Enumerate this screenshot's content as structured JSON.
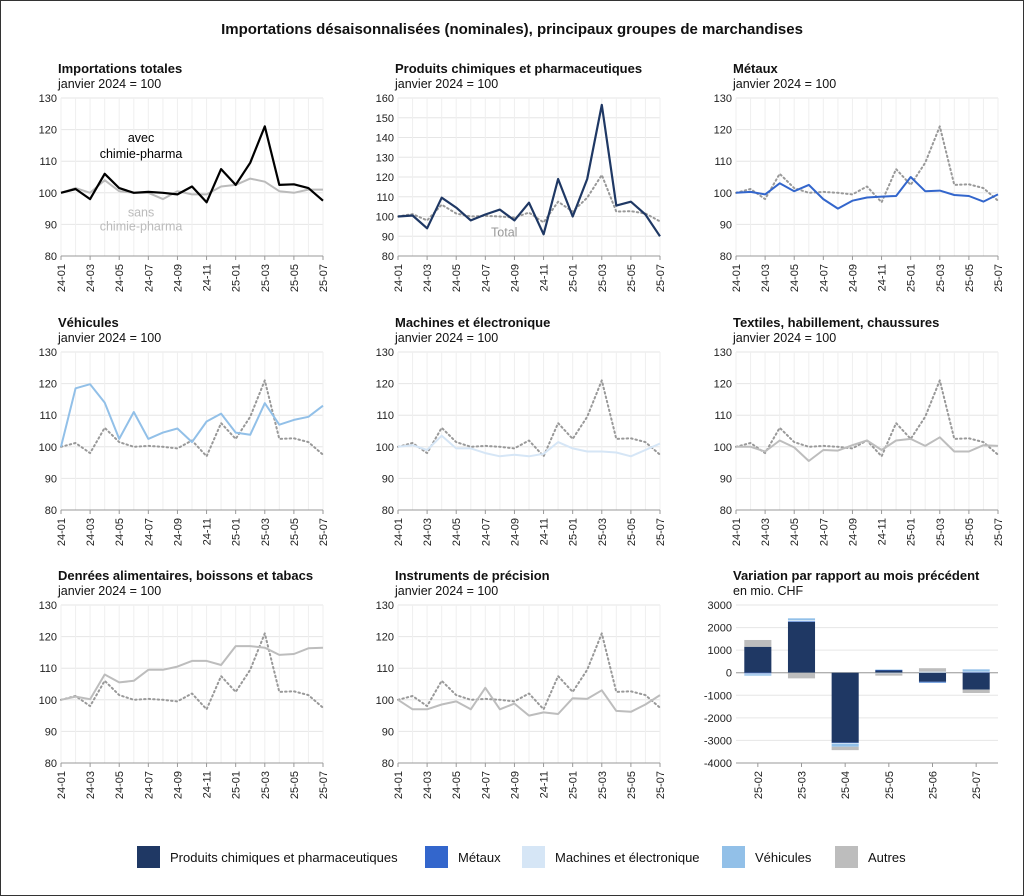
{
  "figure": {
    "title": "Importations désaisonnalisées (nominales), principaux groupes de marchandises"
  },
  "colors": {
    "chem": "#1f3864",
    "metals": "#3366cc",
    "machines": "#d6e6f6",
    "vehicles": "#92c0e8",
    "others": "#bdbdbd",
    "total": "#999999",
    "black": "#000000",
    "grey": "#bbbbbb"
  },
  "chart_data": [
    {
      "type": "line",
      "title": "Importations totales",
      "subtitle": "janvier 2024 = 100",
      "categories": [
        "24-01",
        "24-02",
        "24-03",
        "24-04",
        "24-05",
        "24-06",
        "24-07",
        "24-08",
        "24-09",
        "24-10",
        "24-11",
        "24-12",
        "25-01",
        "25-02",
        "25-03",
        "25-04",
        "25-05",
        "25-06",
        "25-07"
      ],
      "tick_labels": [
        "24-01",
        "24-03",
        "24-05",
        "24-07",
        "24-09",
        "24-11",
        "25-01",
        "25-03",
        "25-05",
        "25-07"
      ],
      "ylim": [
        80,
        130
      ],
      "yticks": [
        80,
        90,
        100,
        110,
        120,
        130
      ],
      "series": [
        {
          "name": "sans chimie-pharma",
          "color": "grey",
          "style": "solid",
          "values": [
            100,
            101.5,
            100,
            104,
            100.5,
            100,
            100,
            98,
            100.5,
            99.5,
            99.5,
            102,
            102.5,
            104.5,
            103.5,
            100.5,
            100,
            101,
            101
          ]
        },
        {
          "name": "avec chimie-pharma",
          "color": "black",
          "style": "solid",
          "values": [
            100,
            101.2,
            98,
            106,
            101.5,
            100,
            100.3,
            100,
            99.5,
            102,
            97,
            107.5,
            102.5,
            109.5,
            121,
            102.5,
            102.7,
            101.5,
            97.5
          ]
        }
      ],
      "annotations": [
        {
          "lines": [
            "avec",
            "chimie-pharma"
          ],
          "color": "black",
          "xi": 5.5,
          "y": [
            116,
            111
          ]
        },
        {
          "lines": [
            "sans",
            "chimie-pharma"
          ],
          "color": "grey",
          "xi": 5.5,
          "y": [
            92.5,
            88
          ]
        }
      ]
    },
    {
      "type": "line",
      "title": "Produits chimiques et pharmaceutiques",
      "subtitle": "janvier 2024 = 100",
      "categories": [
        "24-01",
        "24-02",
        "24-03",
        "24-04",
        "24-05",
        "24-06",
        "24-07",
        "24-08",
        "24-09",
        "24-10",
        "24-11",
        "24-12",
        "25-01",
        "25-02",
        "25-03",
        "25-04",
        "25-05",
        "25-06",
        "25-07"
      ],
      "tick_labels": [
        "24-01",
        "24-03",
        "24-05",
        "24-07",
        "24-09",
        "24-11",
        "25-01",
        "25-03",
        "25-05",
        "25-07"
      ],
      "ylim": [
        80,
        160
      ],
      "yticks": [
        80,
        90,
        100,
        110,
        120,
        130,
        140,
        150,
        160
      ],
      "series": [
        {
          "name": "Total",
          "color": "total",
          "style": "dotted",
          "values": [
            100,
            101.2,
            98,
            106,
            101.5,
            100,
            100.3,
            100,
            99.5,
            102,
            97,
            107.5,
            102.5,
            109.5,
            121,
            102.5,
            102.7,
            101.5,
            97.5
          ]
        },
        {
          "name": "Produits chimiques et pharmaceutiques",
          "color": "chem",
          "style": "solid",
          "values": [
            100,
            100.5,
            94,
            109.5,
            104.5,
            98,
            101,
            103.5,
            98,
            107,
            91,
            119,
            100,
            119,
            156.5,
            105.5,
            107.5,
            101,
            90
          ]
        }
      ],
      "annotations": [
        {
          "lines": [
            "Total"
          ],
          "color": "total",
          "xi": 7.3,
          "y": [
            90
          ]
        }
      ]
    },
    {
      "type": "line",
      "title": "Métaux",
      "subtitle": "janvier 2024 = 100",
      "categories": [
        "24-01",
        "24-02",
        "24-03",
        "24-04",
        "24-05",
        "24-06",
        "24-07",
        "24-08",
        "24-09",
        "24-10",
        "24-11",
        "24-12",
        "25-01",
        "25-02",
        "25-03",
        "25-04",
        "25-05",
        "25-06",
        "25-07"
      ],
      "tick_labels": [
        "24-01",
        "24-03",
        "24-05",
        "24-07",
        "24-09",
        "24-11",
        "25-01",
        "25-03",
        "25-05",
        "25-07"
      ],
      "ylim": [
        80,
        130
      ],
      "yticks": [
        80,
        90,
        100,
        110,
        120,
        130
      ],
      "series": [
        {
          "name": "Total",
          "color": "total",
          "style": "dotted",
          "values": [
            100,
            101.2,
            98,
            106,
            101.5,
            100,
            100.3,
            100,
            99.5,
            102,
            97,
            107.5,
            102.5,
            109.5,
            121,
            102.5,
            102.7,
            101.5,
            97.5
          ]
        },
        {
          "name": "Métaux",
          "color": "metals",
          "style": "solid",
          "values": [
            100,
            100.3,
            99.5,
            103,
            100.5,
            102.5,
            98,
            95,
            97.5,
            98.5,
            98.8,
            99,
            105,
            100.5,
            100.7,
            99.3,
            99,
            97.2,
            99.5
          ]
        }
      ]
    },
    {
      "type": "line",
      "title": "Véhicules",
      "subtitle": "janvier 2024 = 100",
      "categories": [
        "24-01",
        "24-02",
        "24-03",
        "24-04",
        "24-05",
        "24-06",
        "24-07",
        "24-08",
        "24-09",
        "24-10",
        "24-11",
        "24-12",
        "25-01",
        "25-02",
        "25-03",
        "25-04",
        "25-05",
        "25-06",
        "25-07"
      ],
      "tick_labels": [
        "24-01",
        "24-03",
        "24-05",
        "24-07",
        "24-09",
        "24-11",
        "25-01",
        "25-03",
        "25-05",
        "25-07"
      ],
      "ylim": [
        80,
        130
      ],
      "yticks": [
        80,
        90,
        100,
        110,
        120,
        130
      ],
      "series": [
        {
          "name": "Total",
          "color": "total",
          "style": "dotted",
          "values": [
            100,
            101.2,
            98,
            106,
            101.5,
            100,
            100.3,
            100,
            99.5,
            102,
            97,
            107.5,
            102.5,
            109.5,
            121,
            102.5,
            102.7,
            101.5,
            97.5
          ]
        },
        {
          "name": "Véhicules",
          "color": "vehicles",
          "style": "solid",
          "values": [
            100,
            118.5,
            119.8,
            114,
            102.5,
            111,
            102.5,
            104.5,
            105.8,
            101.5,
            108,
            110.5,
            104.5,
            103.8,
            113.8,
            107,
            108.5,
            109.5,
            113
          ]
        }
      ]
    },
    {
      "type": "line",
      "title": "Machines et électronique",
      "subtitle": "janvier 2024 = 100",
      "categories": [
        "24-01",
        "24-02",
        "24-03",
        "24-04",
        "24-05",
        "24-06",
        "24-07",
        "24-08",
        "24-09",
        "24-10",
        "24-11",
        "24-12",
        "25-01",
        "25-02",
        "25-03",
        "25-04",
        "25-05",
        "25-06",
        "25-07"
      ],
      "tick_labels": [
        "24-01",
        "24-03",
        "24-05",
        "24-07",
        "24-09",
        "24-11",
        "25-01",
        "25-03",
        "25-05",
        "25-07"
      ],
      "ylim": [
        80,
        130
      ],
      "yticks": [
        80,
        90,
        100,
        110,
        120,
        130
      ],
      "series": [
        {
          "name": "Total",
          "color": "total",
          "style": "dotted",
          "values": [
            100,
            101.2,
            98,
            106,
            101.5,
            100,
            100.3,
            100,
            99.5,
            102,
            97,
            107.5,
            102.5,
            109.5,
            121,
            102.5,
            102.7,
            101.5,
            97.5
          ]
        },
        {
          "name": "Machines et électronique",
          "color": "machines",
          "style": "solid",
          "values": [
            100,
            100.5,
            99,
            103.5,
            99.5,
            99.5,
            98,
            97,
            97.5,
            97,
            97.8,
            101.5,
            99.5,
            98.5,
            98.5,
            98.2,
            97,
            99,
            101
          ]
        }
      ]
    },
    {
      "type": "line",
      "title": "Textiles, habillement, chaussures",
      "subtitle": "janvier 2024 = 100",
      "categories": [
        "24-01",
        "24-02",
        "24-03",
        "24-04",
        "24-05",
        "24-06",
        "24-07",
        "24-08",
        "24-09",
        "24-10",
        "24-11",
        "24-12",
        "25-01",
        "25-02",
        "25-03",
        "25-04",
        "25-05",
        "25-06",
        "25-07"
      ],
      "tick_labels": [
        "24-01",
        "24-03",
        "24-05",
        "24-07",
        "24-09",
        "24-11",
        "25-01",
        "25-03",
        "25-05",
        "25-07"
      ],
      "ylim": [
        80,
        130
      ],
      "yticks": [
        80,
        90,
        100,
        110,
        120,
        130
      ],
      "series": [
        {
          "name": "Total",
          "color": "total",
          "style": "dotted",
          "values": [
            100,
            101.2,
            98,
            106,
            101.5,
            100,
            100.3,
            100,
            99.5,
            102,
            97,
            107.5,
            102.5,
            109.5,
            121,
            102.5,
            102.7,
            101.5,
            97.5
          ]
        },
        {
          "name": "Textiles, habillement, chaussures",
          "color": "others",
          "style": "solid",
          "values": [
            100,
            100,
            98.5,
            102,
            99.8,
            95.5,
            99,
            98.8,
            100.5,
            102,
            99,
            102,
            102.5,
            100.3,
            103,
            98.5,
            98.5,
            100.5,
            100.3
          ]
        }
      ]
    },
    {
      "type": "line",
      "title": "Denrées alimentaires, boissons et tabacs",
      "subtitle": "janvier 2024 = 100",
      "categories": [
        "24-01",
        "24-02",
        "24-03",
        "24-04",
        "24-05",
        "24-06",
        "24-07",
        "24-08",
        "24-09",
        "24-10",
        "24-11",
        "24-12",
        "25-01",
        "25-02",
        "25-03",
        "25-04",
        "25-05",
        "25-06",
        "25-07"
      ],
      "tick_labels": [
        "24-01",
        "24-03",
        "24-05",
        "24-07",
        "24-09",
        "24-11",
        "25-01",
        "25-03",
        "25-05",
        "25-07"
      ],
      "ylim": [
        80,
        130
      ],
      "yticks": [
        80,
        90,
        100,
        110,
        120,
        130
      ],
      "series": [
        {
          "name": "Total",
          "color": "total",
          "style": "dotted",
          "values": [
            100,
            101.2,
            98,
            106,
            101.5,
            100,
            100.3,
            100,
            99.5,
            102,
            97,
            107.5,
            102.5,
            109.5,
            121,
            102.5,
            102.7,
            101.5,
            97.5
          ]
        },
        {
          "name": "Denrées alimentaires, boissons et tabacs",
          "color": "others",
          "style": "solid",
          "values": [
            100,
            101,
            100.2,
            108,
            105.5,
            106,
            109.5,
            109.5,
            110.5,
            112.3,
            112.3,
            111,
            117,
            117,
            116.5,
            114.2,
            114.5,
            116.3,
            116.5
          ]
        }
      ]
    },
    {
      "type": "line",
      "title": "Instruments de précision",
      "subtitle": "janvier 2024 = 100",
      "categories": [
        "24-01",
        "24-02",
        "24-03",
        "24-04",
        "24-05",
        "24-06",
        "24-07",
        "24-08",
        "24-09",
        "24-10",
        "24-11",
        "24-12",
        "25-01",
        "25-02",
        "25-03",
        "25-04",
        "25-05",
        "25-06",
        "25-07"
      ],
      "tick_labels": [
        "24-01",
        "24-03",
        "24-05",
        "24-07",
        "24-09",
        "24-11",
        "25-01",
        "25-03",
        "25-05",
        "25-07"
      ],
      "ylim": [
        80,
        130
      ],
      "yticks": [
        80,
        90,
        100,
        110,
        120,
        130
      ],
      "series": [
        {
          "name": "Total",
          "color": "total",
          "style": "dotted",
          "values": [
            100,
            101.2,
            98,
            106,
            101.5,
            100,
            100.3,
            100,
            99.5,
            102,
            97,
            107.5,
            102.5,
            109.5,
            121,
            102.5,
            102.7,
            101.5,
            97.5
          ]
        },
        {
          "name": "Instruments de précision",
          "color": "others",
          "style": "solid",
          "values": [
            100,
            97,
            97,
            98.5,
            99.5,
            97,
            103.8,
            97,
            98.8,
            95,
            96,
            95.5,
            100.5,
            100.3,
            103,
            96.5,
            96.2,
            98.5,
            101.5
          ]
        }
      ]
    },
    {
      "type": "bar",
      "stacked": true,
      "title": "Variation par rapport au mois précédent",
      "subtitle": "en mio. CHF",
      "categories": [
        "25-02",
        "25-03",
        "25-04",
        "25-05",
        "25-06",
        "25-07"
      ],
      "ylim": [
        -4000,
        3000
      ],
      "yticks": [
        -4000,
        -3000,
        -2000,
        -1000,
        0,
        1000,
        2000,
        3000
      ],
      "series": [
        {
          "name": "Produits chimiques et pharmaceutiques",
          "color": "chem",
          "values": [
            1150,
            2250,
            -3100,
            100,
            -400,
            -750
          ]
        },
        {
          "name": "Métaux",
          "color": "metals",
          "values": [
            -30,
            30,
            -20,
            20,
            -30,
            20
          ]
        },
        {
          "name": "Machines et électronique",
          "color": "machines",
          "values": [
            -40,
            50,
            -30,
            -30,
            50,
            30
          ]
        },
        {
          "name": "Véhicules",
          "color": "vehicles",
          "values": [
            -60,
            80,
            -130,
            20,
            -20,
            100
          ]
        },
        {
          "name": "Autres",
          "color": "others",
          "values": [
            300,
            -250,
            -150,
            -100,
            150,
            -150
          ]
        }
      ]
    }
  ],
  "legend": {
    "items": [
      {
        "label": "Produits chimiques et pharmaceutiques",
        "color": "chem"
      },
      {
        "label": "Métaux",
        "color": "metals"
      },
      {
        "label": "Machines et électronique",
        "color": "machines"
      },
      {
        "label": "Véhicules",
        "color": "vehicles"
      },
      {
        "label": "Autres",
        "color": "others"
      }
    ]
  }
}
